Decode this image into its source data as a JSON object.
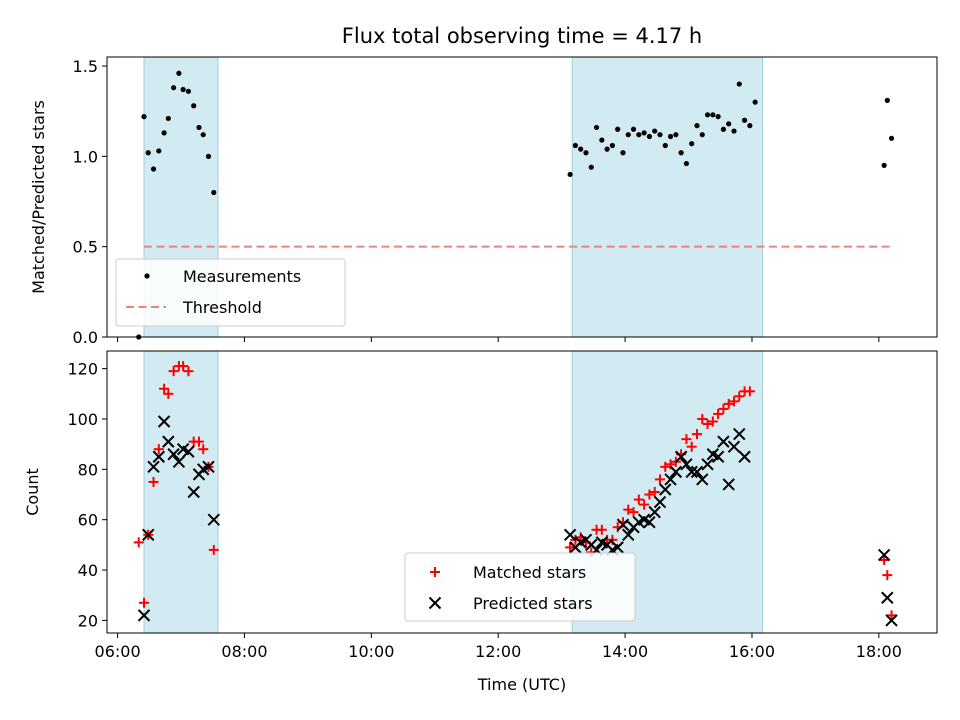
{
  "title": "Flux total observing time = 4.17 h",
  "colors": {
    "band": "#add8e6",
    "measurement": "#000000",
    "threshold": "#f08080",
    "matched": "#ff0000",
    "predicted": "#000000"
  },
  "chart_data": [
    {
      "type": "scatter",
      "ylabel": "Matched/Predicted stars",
      "ylim": [
        0,
        1.55
      ],
      "yticks": [
        0.0,
        0.5,
        1.0,
        1.5
      ],
      "ytick_labels": [
        "0.0",
        "0.5",
        "1.0",
        "1.5"
      ],
      "xlim": [
        "05:50",
        "18:55"
      ],
      "xtick_labels": [],
      "grid": false,
      "legend_position": "lower-left",
      "shaded_intervals": [
        [
          "06:25",
          "07:35"
        ],
        [
          "13:10",
          "16:10"
        ]
      ],
      "series": [
        {
          "name": "Measurements",
          "marker": "dot",
          "points": [
            [
              "06:20",
              0.0
            ],
            [
              "06:25",
              1.22
            ],
            [
              "06:29",
              1.02
            ],
            [
              "06:34",
              0.93
            ],
            [
              "06:39",
              1.03
            ],
            [
              "06:44",
              1.13
            ],
            [
              "06:48",
              1.21
            ],
            [
              "06:53",
              1.38
            ],
            [
              "06:58",
              1.46
            ],
            [
              "07:02",
              1.37
            ],
            [
              "07:07",
              1.36
            ],
            [
              "07:12",
              1.28
            ],
            [
              "07:17",
              1.16
            ],
            [
              "07:21",
              1.12
            ],
            [
              "07:26",
              1.0
            ],
            [
              "07:31",
              0.8
            ],
            [
              "13:08",
              0.9
            ],
            [
              "13:13",
              1.06
            ],
            [
              "13:18",
              1.04
            ],
            [
              "13:23",
              1.02
            ],
            [
              "13:28",
              0.94
            ],
            [
              "13:33",
              1.16
            ],
            [
              "13:38",
              1.09
            ],
            [
              "13:43",
              1.04
            ],
            [
              "13:48",
              1.06
            ],
            [
              "13:53",
              1.15
            ],
            [
              "13:58",
              1.02
            ],
            [
              "14:03",
              1.12
            ],
            [
              "14:08",
              1.15
            ],
            [
              "14:13",
              1.12
            ],
            [
              "14:18",
              1.13
            ],
            [
              "14:23",
              1.11
            ],
            [
              "14:28",
              1.14
            ],
            [
              "14:33",
              1.12
            ],
            [
              "14:38",
              1.06
            ],
            [
              "14:43",
              1.11
            ],
            [
              "14:48",
              1.12
            ],
            [
              "14:53",
              1.02
            ],
            [
              "14:58",
              0.96
            ],
            [
              "15:03",
              1.07
            ],
            [
              "15:08",
              1.17
            ],
            [
              "15:13",
              1.12
            ],
            [
              "15:18",
              1.23
            ],
            [
              "15:23",
              1.23
            ],
            [
              "15:28",
              1.22
            ],
            [
              "15:33",
              1.15
            ],
            [
              "15:38",
              1.18
            ],
            [
              "15:43",
              1.14
            ],
            [
              "15:48",
              1.4
            ],
            [
              "15:53",
              1.2
            ],
            [
              "15:58",
              1.17
            ],
            [
              "16:03",
              1.3
            ],
            [
              "18:05",
              0.95
            ],
            [
              "18:08",
              1.31
            ],
            [
              "18:12",
              1.1
            ]
          ]
        },
        {
          "name": "Threshold",
          "marker": "dashed-line",
          "points": [
            [
              "06:25",
              0.5
            ],
            [
              "18:10",
              0.5
            ]
          ]
        }
      ]
    },
    {
      "type": "scatter",
      "xlabel": "Time (UTC)",
      "ylabel": "Count",
      "ylim": [
        15,
        127
      ],
      "yticks": [
        20,
        40,
        60,
        80,
        100,
        120
      ],
      "ytick_labels": [
        "20",
        "40",
        "60",
        "80",
        "100",
        "120"
      ],
      "xlim": [
        "05:50",
        "18:55"
      ],
      "xticks": [
        "06:00",
        "08:00",
        "10:00",
        "12:00",
        "14:00",
        "16:00",
        "18:00"
      ],
      "xtick_labels": [
        "06:00",
        "08:00",
        "10:00",
        "12:00",
        "14:00",
        "16:00",
        "18:00"
      ],
      "grid": false,
      "legend_position": "lower-center",
      "shaded_intervals": [
        [
          "06:25",
          "07:35"
        ],
        [
          "13:10",
          "16:10"
        ]
      ],
      "series": [
        {
          "name": "Matched stars",
          "marker": "plus",
          "points": [
            [
              "06:20",
              51
            ],
            [
              "06:25",
              27
            ],
            [
              "06:29",
              54
            ],
            [
              "06:34",
              75
            ],
            [
              "06:39",
              88
            ],
            [
              "06:44",
              112
            ],
            [
              "06:48",
              110
            ],
            [
              "06:53",
              119
            ],
            [
              "06:58",
              121
            ],
            [
              "07:02",
              121
            ],
            [
              "07:07",
              119
            ],
            [
              "07:12",
              91
            ],
            [
              "07:17",
              91
            ],
            [
              "07:21",
              88
            ],
            [
              "07:26",
              81
            ],
            [
              "07:31",
              48
            ],
            [
              "13:08",
              49
            ],
            [
              "13:13",
              52
            ],
            [
              "13:18",
              53
            ],
            [
              "13:23",
              51
            ],
            [
              "13:28",
              47
            ],
            [
              "13:33",
              56
            ],
            [
              "13:38",
              56
            ],
            [
              "13:43",
              52
            ],
            [
              "13:48",
              52
            ],
            [
              "13:53",
              57
            ],
            [
              "13:58",
              59
            ],
            [
              "14:03",
              64
            ],
            [
              "14:08",
              63
            ],
            [
              "14:13",
              68
            ],
            [
              "14:18",
              66
            ],
            [
              "14:23",
              70
            ],
            [
              "14:28",
              71
            ],
            [
              "14:33",
              76
            ],
            [
              "14:38",
              81
            ],
            [
              "14:43",
              82
            ],
            [
              "14:48",
              83
            ],
            [
              "14:53",
              86
            ],
            [
              "14:58",
              92
            ],
            [
              "15:03",
              89
            ],
            [
              "15:08",
              94
            ],
            [
              "15:13",
              100
            ],
            [
              "15:18",
              98
            ],
            [
              "15:23",
              99
            ],
            [
              "15:28",
              102
            ],
            [
              "15:33",
              104
            ],
            [
              "15:38",
              106
            ],
            [
              "15:43",
              107
            ],
            [
              "15:48",
              109
            ],
            [
              "15:53",
              111
            ],
            [
              "15:58",
              111
            ],
            [
              "18:05",
              44
            ],
            [
              "18:08",
              38
            ],
            [
              "18:12",
              22
            ]
          ]
        },
        {
          "name": "Predicted stars",
          "marker": "x",
          "points": [
            [
              "06:25",
              22
            ],
            [
              "06:29",
              54
            ],
            [
              "06:34",
              81
            ],
            [
              "06:39",
              85
            ],
            [
              "06:44",
              99
            ],
            [
              "06:48",
              91
            ],
            [
              "06:53",
              86
            ],
            [
              "06:58",
              83
            ],
            [
              "07:02",
              88
            ],
            [
              "07:07",
              87
            ],
            [
              "07:12",
              71
            ],
            [
              "07:17",
              78
            ],
            [
              "07:21",
              80
            ],
            [
              "07:26",
              81
            ],
            [
              "07:31",
              60
            ],
            [
              "13:08",
              54
            ],
            [
              "13:13",
              49
            ],
            [
              "13:18",
              51
            ],
            [
              "13:23",
              52
            ],
            [
              "13:28",
              50
            ],
            [
              "13:33",
              48
            ],
            [
              "13:38",
              51
            ],
            [
              "13:43",
              50
            ],
            [
              "13:48",
              48
            ],
            [
              "13:53",
              49
            ],
            [
              "13:58",
              58
            ],
            [
              "14:03",
              54
            ],
            [
              "14:08",
              57
            ],
            [
              "14:13",
              59
            ],
            [
              "14:18",
              60
            ],
            [
              "14:23",
              59
            ],
            [
              "14:28",
              63
            ],
            [
              "14:33",
              67
            ],
            [
              "14:38",
              72
            ],
            [
              "14:43",
              76
            ],
            [
              "14:48",
              79
            ],
            [
              "14:53",
              85
            ],
            [
              "14:58",
              82
            ],
            [
              "15:03",
              79
            ],
            [
              "15:08",
              79
            ],
            [
              "15:13",
              76
            ],
            [
              "15:18",
              82
            ],
            [
              "15:23",
              86
            ],
            [
              "15:28",
              85
            ],
            [
              "15:33",
              91
            ],
            [
              "15:38",
              74
            ],
            [
              "15:43",
              89
            ],
            [
              "15:48",
              94
            ],
            [
              "15:53",
              85
            ],
            [
              "18:05",
              46
            ],
            [
              "18:08",
              29
            ],
            [
              "18:12",
              20
            ]
          ]
        }
      ]
    }
  ]
}
